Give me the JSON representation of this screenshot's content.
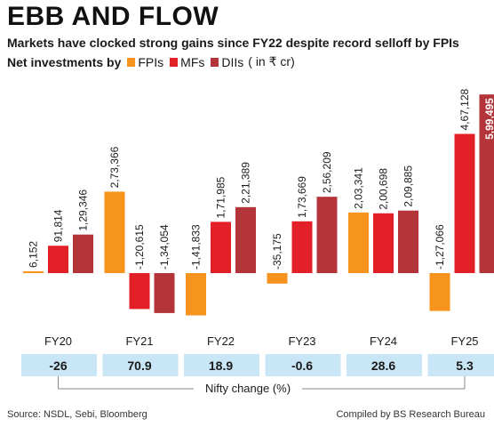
{
  "header": {
    "title": "EBB AND FLOW",
    "subtitle": "Markets have clocked strong gains since FY22 despite record selloff by FPIs",
    "legend_prefix": "Net investments by",
    "unit": "( in ₹ cr)"
  },
  "chart_data": {
    "type": "bar",
    "categories": [
      "FY20",
      "FY21",
      "FY22",
      "FY23",
      "FY24",
      "FY25"
    ],
    "series": [
      {
        "name": "FPIs",
        "color": "#f7941d",
        "values": [
          6152,
          273366,
          -141833,
          -35175,
          203341,
          -127066
        ],
        "labels": [
          "6,152",
          "2,73,366",
          "-1,41,833",
          "-35,175",
          "2,03,341",
          "-1,27,066"
        ]
      },
      {
        "name": "MFs",
        "color": "#e32028",
        "values": [
          91814,
          -120615,
          171985,
          173669,
          200698,
          467128
        ],
        "labels": [
          "91,814",
          "-1,20,615",
          "1,71,985",
          "1,73,669",
          "2,00,698",
          "4,67,128"
        ]
      },
      {
        "name": "DIIs",
        "color": "#b3353a",
        "values": [
          129346,
          -134054,
          221389,
          256209,
          209885,
          599495
        ],
        "labels": [
          "1,29,346",
          "-1,34,054",
          "2,21,389",
          "2,56,209",
          "2,09,885",
          "5,99,495"
        ]
      }
    ],
    "nifty_change": [
      "-26",
      "70.9",
      "18.9",
      "-0.6",
      "28.6",
      "5.3"
    ],
    "nifty_label": "Nifty change (%)"
  },
  "footer": {
    "source": "Source: NSDL, Sebi, Bloomberg",
    "credit": "Compiled by BS Research Bureau"
  }
}
